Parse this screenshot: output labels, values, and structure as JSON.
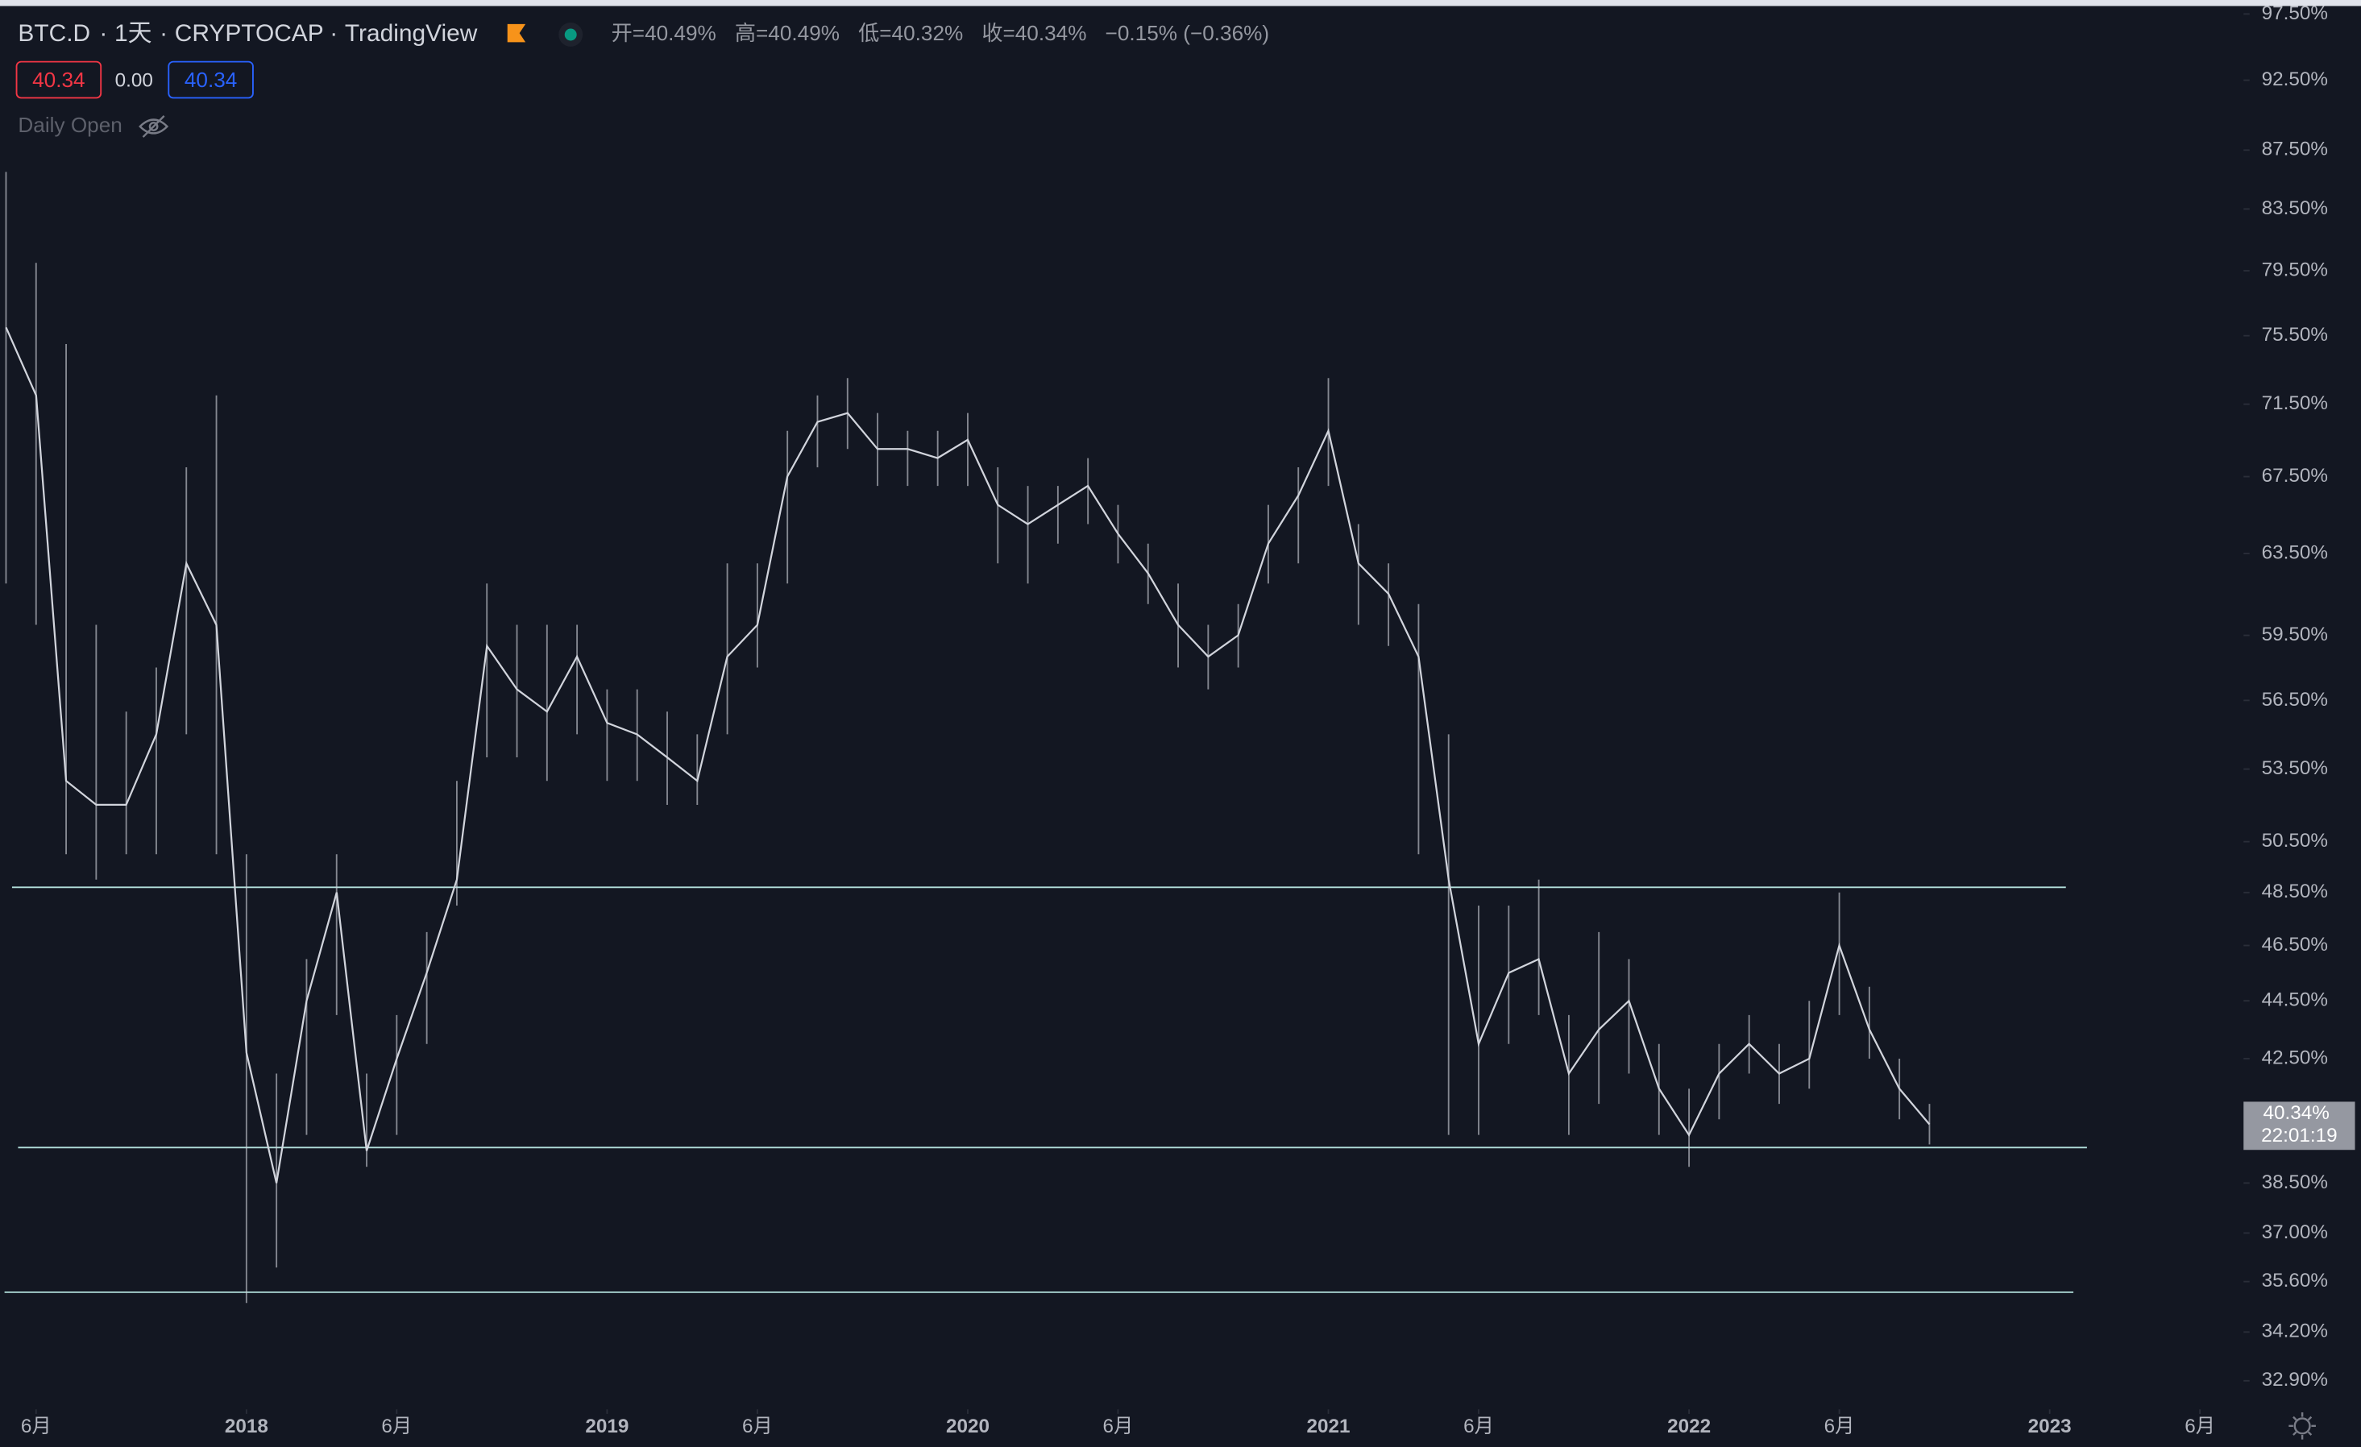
{
  "chart_data": {
    "type": "line",
    "title": "BTC.D",
    "interval": "1天",
    "exchange": "CRYPTOCAP",
    "source": "TradingView",
    "legend_values": [
      "开=40.49%",
      "高=40.49%",
      "低=40.32%",
      "收=40.34%",
      "−0.15% (−0.36%)"
    ],
    "inputs": [
      "40.34",
      "0.00",
      "40.34"
    ],
    "indicator": "Daily Open",
    "background": "#131722",
    "color": "#d1d4dc",
    "log_scale": true,
    "x": [
      "2017-05",
      "2017-06",
      "2017-07",
      "2017-08",
      "2017-09",
      "2017-10",
      "2017-11",
      "2017-12",
      "2018-01",
      "2018-02",
      "2018-03",
      "2018-04",
      "2018-05",
      "2018-06",
      "2018-07",
      "2018-08",
      "2018-09",
      "2018-10",
      "2018-11",
      "2018-12",
      "2019-01",
      "2019-02",
      "2019-03",
      "2019-04",
      "2019-05",
      "2019-06",
      "2019-07",
      "2019-08",
      "2019-09",
      "2019-10",
      "2019-11",
      "2019-12",
      "2020-01",
      "2020-02",
      "2020-03",
      "2020-04",
      "2020-05",
      "2020-06",
      "2020-07",
      "2020-08",
      "2020-09",
      "2020-10",
      "2020-11",
      "2020-12",
      "2021-01",
      "2021-02",
      "2021-03",
      "2021-04",
      "2021-05",
      "2021-06",
      "2021-07",
      "2021-08",
      "2021-09",
      "2021-10",
      "2021-11",
      "2021-12",
      "2022-01",
      "2022-02",
      "2022-03",
      "2022-04",
      "2022-05",
      "2022-06",
      "2022-07",
      "2022-08",
      "2022-09"
    ],
    "values": [
      76,
      72,
      53,
      52,
      52,
      55,
      63,
      60,
      42.7,
      38.5,
      44.5,
      48.5,
      39.5,
      42.5,
      45.5,
      49,
      59,
      57,
      56,
      58.5,
      55.5,
      55,
      54,
      53,
      58.5,
      60,
      67.5,
      70.5,
      71,
      69,
      69,
      68.5,
      69.5,
      66,
      65,
      66,
      67,
      64.5,
      62.5,
      60,
      58.5,
      59.5,
      64,
      66.5,
      70,
      63,
      61.5,
      58.5,
      49,
      43,
      45.5,
      46,
      42,
      43.5,
      44.5,
      41.5,
      40,
      42,
      43,
      42,
      42.5,
      46.5,
      43.5,
      41.5,
      40.34
    ],
    "highs": [
      86,
      80,
      75,
      60,
      56,
      58,
      68,
      72,
      50,
      42,
      46,
      50,
      42,
      44,
      47,
      53,
      62,
      60,
      60,
      60,
      57,
      57,
      56,
      55,
      63,
      63,
      70,
      72,
      73,
      71,
      70,
      70,
      71,
      68,
      67,
      67,
      68.5,
      66,
      64,
      62,
      60,
      61,
      66,
      68,
      73,
      65,
      63,
      61,
      55,
      48,
      48,
      49,
      44,
      47,
      46,
      43,
      41.5,
      43,
      44,
      43,
      44.5,
      48.5,
      45,
      42.5,
      41
    ],
    "lows": [
      62,
      60,
      50,
      49,
      50,
      50,
      55,
      50,
      35,
      36,
      40,
      44,
      39,
      40,
      43,
      48,
      54,
      54,
      53,
      55,
      53,
      53,
      52,
      52,
      55,
      58,
      62,
      68,
      69,
      67,
      67,
      67,
      67,
      63,
      62,
      64,
      65,
      63,
      61,
      58,
      57,
      58,
      62,
      63,
      67,
      60,
      59,
      50,
      40,
      40,
      43,
      44,
      40,
      41,
      42,
      40,
      39,
      40.5,
      42,
      41,
      41.5,
      44,
      42.5,
      40.5,
      39.7
    ],
    "xlim": [
      "2017-05",
      "2023-07"
    ],
    "xticks": [
      {
        "value": "2017-06",
        "label": "6月"
      },
      {
        "value": "2018-01",
        "label": "2018"
      },
      {
        "value": "2018-06",
        "label": "6月"
      },
      {
        "value": "2019-01",
        "label": "2019"
      },
      {
        "value": "2019-06",
        "label": "6月"
      },
      {
        "value": "2020-01",
        "label": "2020"
      },
      {
        "value": "2020-06",
        "label": "6月"
      },
      {
        "value": "2021-01",
        "label": "2021"
      },
      {
        "value": "2021-06",
        "label": "6月"
      },
      {
        "value": "2022-01",
        "label": "2022"
      },
      {
        "value": "2022-06",
        "label": "6月"
      },
      {
        "value": "2023-01",
        "label": "2023"
      },
      {
        "value": "2023-06",
        "label": "6月"
      }
    ],
    "ylim": [
      32.2,
      98
    ],
    "yticks": [
      {
        "value": 97.5,
        "label": "97.50%"
      },
      {
        "value": 92.5,
        "label": "92.50%"
      },
      {
        "value": 87.5,
        "label": "87.50%"
      },
      {
        "value": 83.5,
        "label": "83.50%"
      },
      {
        "value": 79.5,
        "label": "79.50%"
      },
      {
        "value": 75.5,
        "label": "75.50%"
      },
      {
        "value": 71.5,
        "label": "71.50%"
      },
      {
        "value": 67.5,
        "label": "67.50%"
      },
      {
        "value": 63.5,
        "label": "63.50%"
      },
      {
        "value": 59.5,
        "label": "59.50%"
      },
      {
        "value": 56.5,
        "label": "56.50%"
      },
      {
        "value": 53.5,
        "label": "53.50%"
      },
      {
        "value": 50.5,
        "label": "50.50%"
      },
      {
        "value": 48.5,
        "label": "48.50%"
      },
      {
        "value": 46.5,
        "label": "46.50%"
      },
      {
        "value": 44.5,
        "label": "44.50%"
      },
      {
        "value": 42.5,
        "label": "42.50%"
      },
      {
        "value": 38.5,
        "label": "38.50%"
      },
      {
        "value": 37,
        "label": "37.00%"
      },
      {
        "value": 35.6,
        "label": "35.60%"
      },
      {
        "value": 34.2,
        "label": "34.20%"
      },
      {
        "value": 32.9,
        "label": "32.90%"
      }
    ],
    "levels": [
      48.7,
      39.6,
      35.3
    ],
    "level_color": "#b2dfdb",
    "last_price": {
      "value": 40.34,
      "label": "40.34%"
    },
    "countdown": "22:01:19"
  }
}
